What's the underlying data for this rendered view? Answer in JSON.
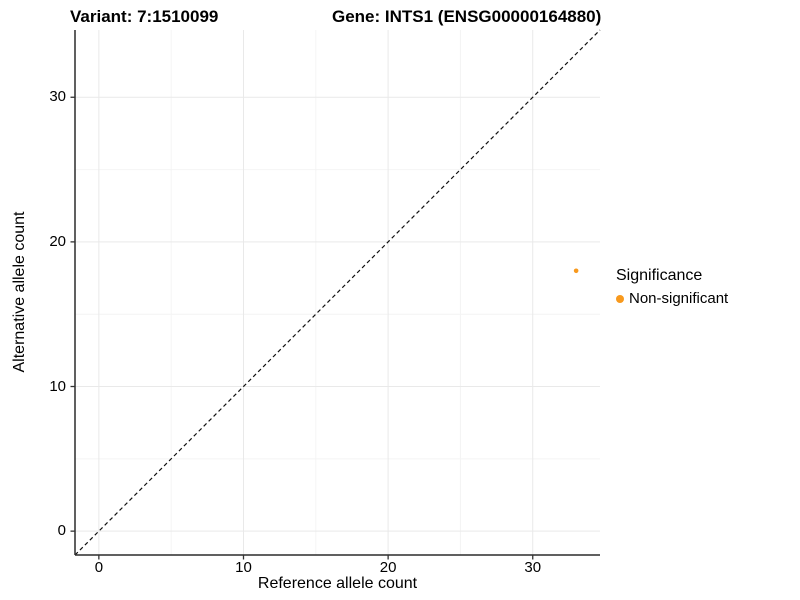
{
  "titles": {
    "variant": "Variant: 7:1510099",
    "gene": "Gene: INTS1 (ENSG00000164880)"
  },
  "axes": {
    "x_label": "Reference allele count",
    "y_label": "Alternative allele count",
    "x_tick_labels": [
      "0",
      "10",
      "20",
      "30"
    ],
    "y_tick_labels": [
      "0",
      "10",
      "20",
      "30"
    ]
  },
  "legend": {
    "title": "Significance",
    "items": [
      {
        "label": "Non-significant",
        "color": "#F8991D"
      }
    ]
  },
  "colors": {
    "point_orange": "#F8991D",
    "axis_line": "#2b2b2b",
    "grid_major": "#E9E9E9",
    "grid_minor": "#F4F4F4",
    "identity_line": "#111111",
    "tick_mark": "#333333",
    "background": "#ffffff"
  },
  "chart_data": {
    "type": "scatter",
    "title": "Variant: 7:1510099 — Gene: INTS1 (ENSG00000164880)",
    "xlabel": "Reference allele count",
    "ylabel": "Alternative allele count",
    "xlim": [
      -1.65,
      34.65
    ],
    "ylim": [
      -1.65,
      34.65
    ],
    "x_ticks": [
      0,
      10,
      20,
      30
    ],
    "y_ticks": [
      0,
      10,
      20,
      30
    ],
    "x_minor_ticks": [
      5,
      15,
      25
    ],
    "y_minor_ticks": [
      5,
      15,
      25
    ],
    "grid": true,
    "legend_position": "right",
    "identity_line": {
      "style": "dashed",
      "from": [
        -1.65,
        -1.65
      ],
      "to": [
        34.65,
        34.65
      ]
    },
    "series": [
      {
        "name": "Non-significant",
        "color": "#F8991D",
        "points": [
          {
            "x": 33,
            "y": 18
          }
        ]
      }
    ]
  }
}
